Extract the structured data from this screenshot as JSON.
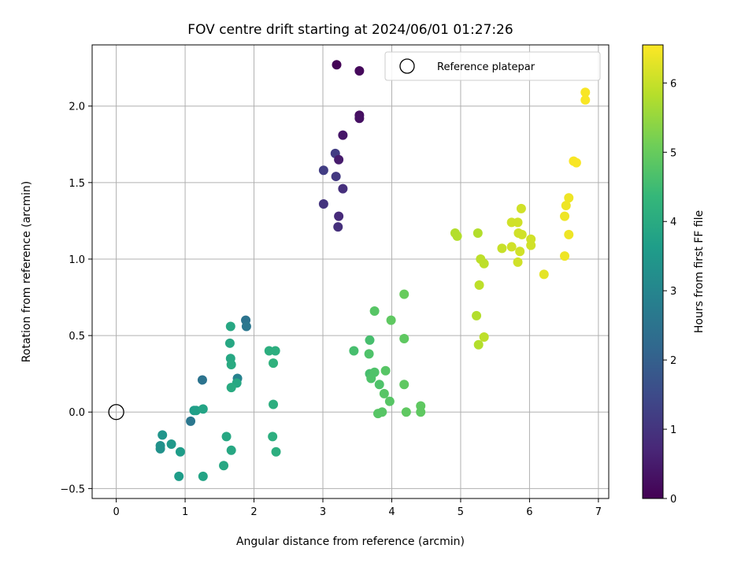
{
  "chart_data": {
    "type": "scatter",
    "title": "FOV centre drift starting at 2024/06/01 01:27:26",
    "xlabel": "Angular distance from reference (arcmin)",
    "ylabel": "Rotation from reference (arcmin)",
    "xlim": [
      -0.35,
      7.15
    ],
    "ylim": [
      -0.565,
      2.4
    ],
    "xticks": [
      0,
      1,
      2,
      3,
      4,
      5,
      6,
      7
    ],
    "xtick_labels": [
      "0",
      "1",
      "2",
      "3",
      "4",
      "5",
      "6",
      "7"
    ],
    "yticks": [
      -0.5,
      0.0,
      0.5,
      1.0,
      1.5,
      2.0
    ],
    "ytick_labels": [
      "−0.5",
      "0.0",
      "0.5",
      "1.0",
      "1.5",
      "2.0"
    ],
    "grid": true,
    "legend": {
      "position": "top-right",
      "entries": [
        "Reference platepar"
      ]
    },
    "reference_point": {
      "x": 0,
      "y": 0,
      "label": "Reference platepar"
    },
    "colorbar": {
      "label": "Hours from first FF file",
      "range": [
        0,
        6.55
      ],
      "ticks": [
        0,
        1,
        2,
        3,
        4,
        5,
        6
      ],
      "tick_labels": [
        "0",
        "1",
        "2",
        "3",
        "4",
        "5",
        "6"
      ],
      "colormap": "viridis",
      "colormap_stops": [
        "#440154",
        "#482878",
        "#3e4989",
        "#31688e",
        "#26828e",
        "#1f9e89",
        "#35b779",
        "#6ece58",
        "#b5de2b",
        "#fde725"
      ]
    },
    "points": [
      {
        "x": 3.2,
        "y": 2.27,
        "c": 0.05
      },
      {
        "x": 3.53,
        "y": 2.23,
        "c": 0.15
      },
      {
        "x": 3.53,
        "y": 1.94,
        "c": 0.25
      },
      {
        "x": 3.53,
        "y": 1.92,
        "c": 0.3
      },
      {
        "x": 3.29,
        "y": 1.81,
        "c": 0.4
      },
      {
        "x": 3.18,
        "y": 1.69,
        "c": 1.2
      },
      {
        "x": 3.23,
        "y": 1.65,
        "c": 0.5
      },
      {
        "x": 3.01,
        "y": 1.58,
        "c": 1.2
      },
      {
        "x": 3.19,
        "y": 1.54,
        "c": 1.1
      },
      {
        "x": 3.29,
        "y": 1.46,
        "c": 0.9
      },
      {
        "x": 3.01,
        "y": 1.36,
        "c": 1.0
      },
      {
        "x": 3.23,
        "y": 1.28,
        "c": 0.8
      },
      {
        "x": 3.22,
        "y": 1.21,
        "c": 0.9
      },
      {
        "x": 1.88,
        "y": 0.6,
        "c": 2.5
      },
      {
        "x": 1.89,
        "y": 0.56,
        "c": 2.6
      },
      {
        "x": 1.66,
        "y": 0.56,
        "c": 3.9
      },
      {
        "x": 1.65,
        "y": 0.45,
        "c": 3.9
      },
      {
        "x": 2.22,
        "y": 0.4,
        "c": 4.1
      },
      {
        "x": 2.31,
        "y": 0.4,
        "c": 4.1
      },
      {
        "x": 1.66,
        "y": 0.35,
        "c": 3.9
      },
      {
        "x": 1.67,
        "y": 0.31,
        "c": 4.0
      },
      {
        "x": 2.28,
        "y": 0.32,
        "c": 4.2
      },
      {
        "x": 1.25,
        "y": 0.21,
        "c": 2.5
      },
      {
        "x": 1.76,
        "y": 0.22,
        "c": 2.9
      },
      {
        "x": 1.75,
        "y": 0.19,
        "c": 3.9
      },
      {
        "x": 1.67,
        "y": 0.16,
        "c": 4.0
      },
      {
        "x": 2.28,
        "y": 0.05,
        "c": 4.1
      },
      {
        "x": 1.13,
        "y": 0.01,
        "c": 3.6
      },
      {
        "x": 1.16,
        "y": 0.01,
        "c": 3.7
      },
      {
        "x": 1.26,
        "y": 0.02,
        "c": 3.8
      },
      {
        "x": 1.08,
        "y": -0.06,
        "c": 2.6
      },
      {
        "x": 0.67,
        "y": -0.15,
        "c": 3.4
      },
      {
        "x": 1.6,
        "y": -0.16,
        "c": 3.9
      },
      {
        "x": 2.27,
        "y": -0.16,
        "c": 4.1
      },
      {
        "x": 0.64,
        "y": -0.22,
        "c": 3.3
      },
      {
        "x": 0.64,
        "y": -0.24,
        "c": 3.3
      },
      {
        "x": 0.8,
        "y": -0.21,
        "c": 3.5
      },
      {
        "x": 0.93,
        "y": -0.26,
        "c": 3.6
      },
      {
        "x": 1.67,
        "y": -0.25,
        "c": 3.9
      },
      {
        "x": 2.32,
        "y": -0.26,
        "c": 4.1
      },
      {
        "x": 1.56,
        "y": -0.35,
        "c": 3.9
      },
      {
        "x": 0.91,
        "y": -0.42,
        "c": 3.6
      },
      {
        "x": 1.26,
        "y": -0.42,
        "c": 3.8
      },
      {
        "x": 4.18,
        "y": 0.77,
        "c": 5.0
      },
      {
        "x": 3.75,
        "y": 0.66,
        "c": 4.8
      },
      {
        "x": 3.99,
        "y": 0.6,
        "c": 4.9
      },
      {
        "x": 4.18,
        "y": 0.48,
        "c": 4.9
      },
      {
        "x": 3.68,
        "y": 0.47,
        "c": 4.6
      },
      {
        "x": 3.45,
        "y": 0.4,
        "c": 4.6
      },
      {
        "x": 3.67,
        "y": 0.38,
        "c": 4.7
      },
      {
        "x": 3.91,
        "y": 0.27,
        "c": 4.8
      },
      {
        "x": 3.68,
        "y": 0.25,
        "c": 4.6
      },
      {
        "x": 3.75,
        "y": 0.26,
        "c": 4.7
      },
      {
        "x": 3.7,
        "y": 0.22,
        "c": 4.7
      },
      {
        "x": 3.82,
        "y": 0.18,
        "c": 4.7
      },
      {
        "x": 4.18,
        "y": 0.18,
        "c": 4.9
      },
      {
        "x": 3.89,
        "y": 0.12,
        "c": 4.8
      },
      {
        "x": 3.97,
        "y": 0.07,
        "c": 4.8
      },
      {
        "x": 4.42,
        "y": 0.04,
        "c": 4.9
      },
      {
        "x": 4.21,
        "y": 0.0,
        "c": 4.9
      },
      {
        "x": 3.86,
        "y": 0.0,
        "c": 4.8
      },
      {
        "x": 3.8,
        "y": -0.01,
        "c": 4.8
      },
      {
        "x": 4.42,
        "y": 0.0,
        "c": 4.9
      },
      {
        "x": 6.81,
        "y": 2.09,
        "c": 6.5
      },
      {
        "x": 6.81,
        "y": 2.04,
        "c": 6.5
      },
      {
        "x": 6.64,
        "y": 1.64,
        "c": 6.5
      },
      {
        "x": 6.68,
        "y": 1.63,
        "c": 6.5
      },
      {
        "x": 6.57,
        "y": 1.4,
        "c": 6.4
      },
      {
        "x": 6.53,
        "y": 1.35,
        "c": 6.4
      },
      {
        "x": 5.88,
        "y": 1.33,
        "c": 6.1
      },
      {
        "x": 6.51,
        "y": 1.28,
        "c": 6.4
      },
      {
        "x": 5.74,
        "y": 1.24,
        "c": 6.1
      },
      {
        "x": 5.83,
        "y": 1.24,
        "c": 6.1
      },
      {
        "x": 4.92,
        "y": 1.17,
        "c": 5.8
      },
      {
        "x": 4.95,
        "y": 1.15,
        "c": 5.8
      },
      {
        "x": 5.25,
        "y": 1.17,
        "c": 5.8
      },
      {
        "x": 5.84,
        "y": 1.17,
        "c": 6.1
      },
      {
        "x": 5.89,
        "y": 1.16,
        "c": 6.1
      },
      {
        "x": 6.57,
        "y": 1.16,
        "c": 6.4
      },
      {
        "x": 6.02,
        "y": 1.13,
        "c": 6.1
      },
      {
        "x": 6.02,
        "y": 1.09,
        "c": 6.1
      },
      {
        "x": 5.6,
        "y": 1.07,
        "c": 6.0
      },
      {
        "x": 5.74,
        "y": 1.08,
        "c": 6.1
      },
      {
        "x": 5.86,
        "y": 1.05,
        "c": 6.1
      },
      {
        "x": 6.51,
        "y": 1.02,
        "c": 6.4
      },
      {
        "x": 5.29,
        "y": 1.0,
        "c": 5.9
      },
      {
        "x": 5.34,
        "y": 0.97,
        "c": 5.9
      },
      {
        "x": 5.83,
        "y": 0.98,
        "c": 6.1
      },
      {
        "x": 6.21,
        "y": 0.9,
        "c": 6.3
      },
      {
        "x": 5.27,
        "y": 0.83,
        "c": 5.9
      },
      {
        "x": 5.23,
        "y": 0.63,
        "c": 5.8
      },
      {
        "x": 5.34,
        "y": 0.49,
        "c": 5.9
      },
      {
        "x": 5.26,
        "y": 0.44,
        "c": 5.8
      }
    ]
  }
}
